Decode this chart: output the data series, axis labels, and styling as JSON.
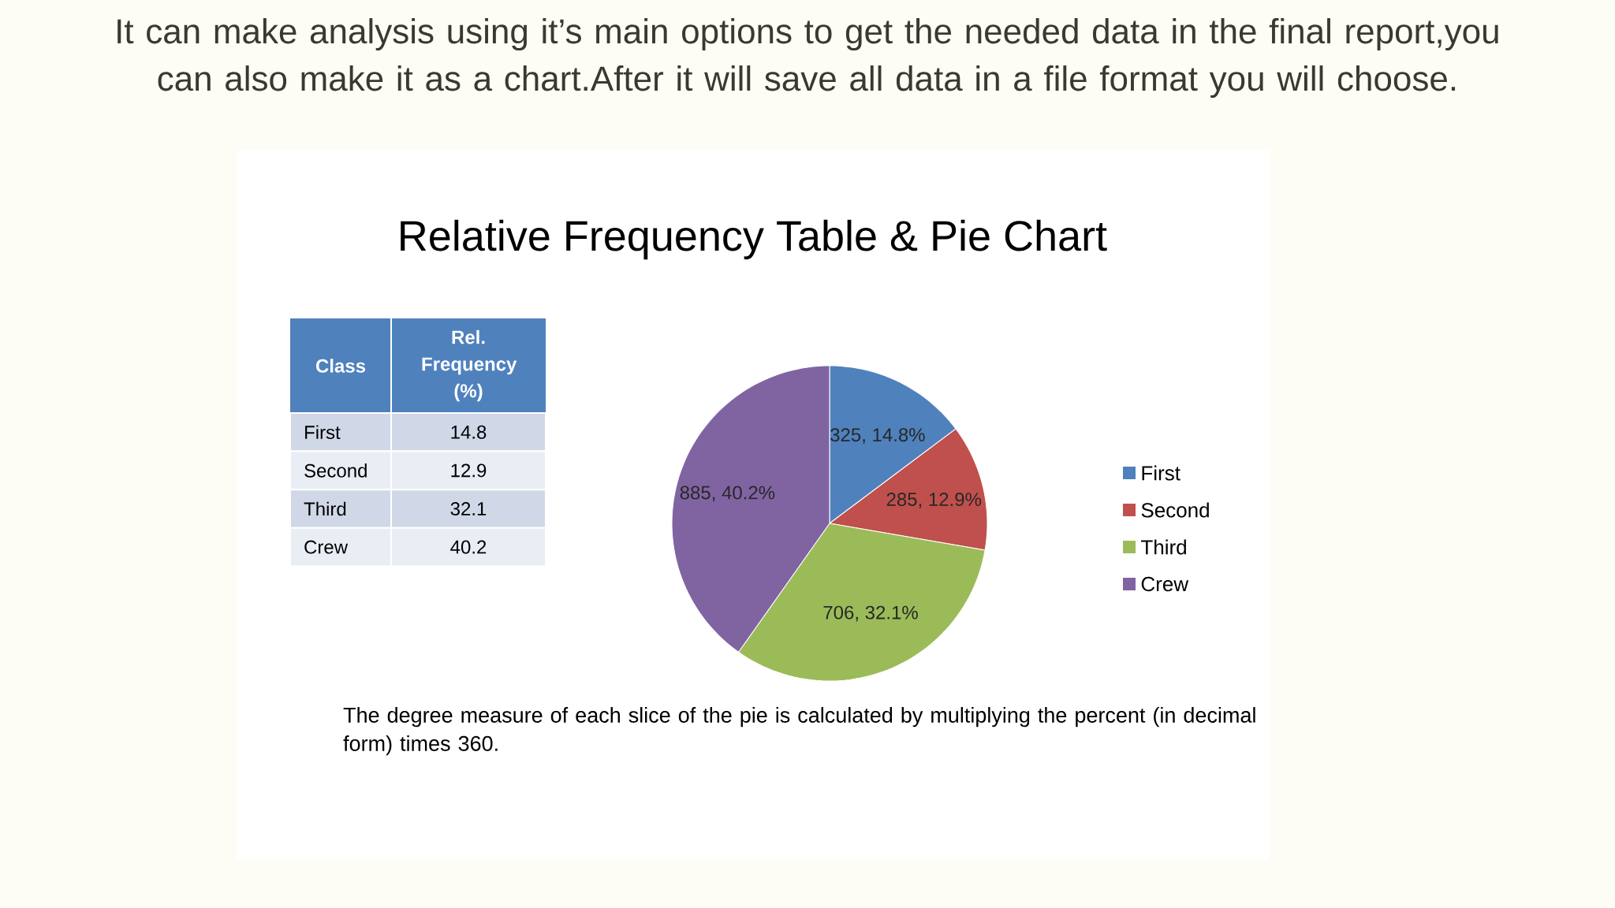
{
  "chart_data": [
    {
      "type": "other",
      "annotations": [
        "It can make analysis using it’s main options to get the needed data in the final report,you can also make it as a chart.After it will save all data in a file format you will choose."
      ],
      "xlabel": "Class",
      "ylabel": "Rel. Frequency (%)",
      "categories": [
        "First",
        "Second",
        "Third",
        "Crew"
      ],
      "values": [
        14.8,
        12.9,
        32.1,
        40.2
      ],
      "value_labels": [
        "14.8",
        "12.9",
        "32.1",
        "40.2"
      ]
    },
    {
      "type": "pie",
      "title": "Relative Frequency Table & Pie Chart",
      "categories": [
        "First",
        "Second",
        "Third",
        "Crew"
      ],
      "values": [
        325,
        285,
        706,
        885
      ],
      "colors": [
        "#4f81bd",
        "#c0504d",
        "#9bbb59",
        "#8064a2"
      ],
      "value_labels": [
        "325, 14.8%",
        "285, 12.9%",
        "706, 32.1%",
        "885, 40.2%"
      ],
      "legend": "right",
      "annotations": [
        "The degree measure of each slice of the pie is calculated by multiplying the percent (in decimal form) times 360."
      ]
    }
  ]
}
